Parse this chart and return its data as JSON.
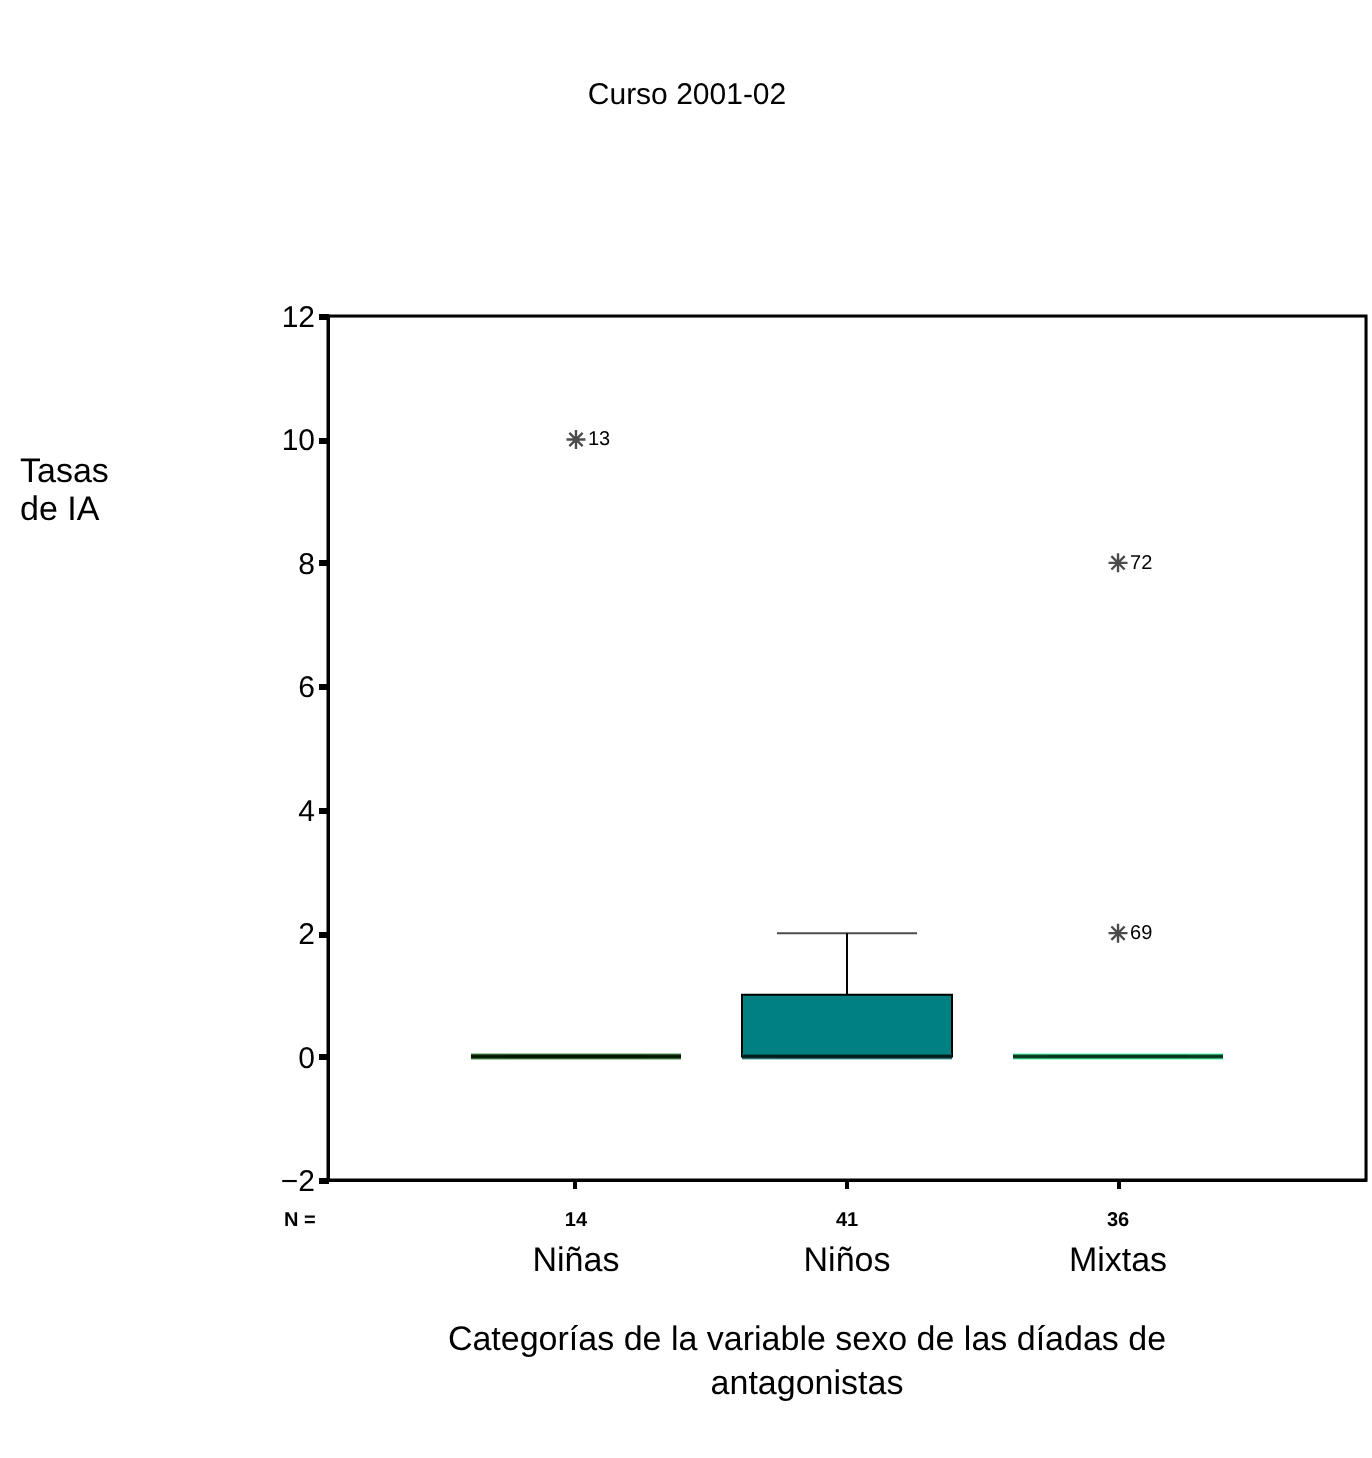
{
  "chart_data": {
    "type": "box",
    "title": "Curso 2001-02",
    "xlabel": "Categorías de la variable sexo de las díadas de\nantagonistas",
    "categories": [
      "Niñas",
      "Niños",
      "Mixtas"
    ],
    "colors": [
      "#006400",
      "#008080",
      "#00ff80"
    ],
    "boxes": [
      {
        "low": 0,
        "q1": 0,
        "median": 0,
        "q3": 0,
        "high": 0,
        "outliers": [
          10
        ]
      },
      {
        "low": 0,
        "q1": 0,
        "median": 0,
        "q3": 1,
        "high": 2
      },
      {
        "low": 0,
        "q1": 0,
        "median": 0,
        "q3": 0,
        "high": 0,
        "outliers": [
          8,
          2
        ]
      }
    ],
    "ylim": [
      -2,
      12
    ],
    "yticks": [
      -2,
      0,
      2,
      4,
      6,
      8,
      10,
      12
    ],
    "grid": false,
    "annotations": [
      "N =",
      "14",
      "41",
      "36",
      "13",
      "72",
      "69",
      "Tasas\nde IA"
    ]
  }
}
